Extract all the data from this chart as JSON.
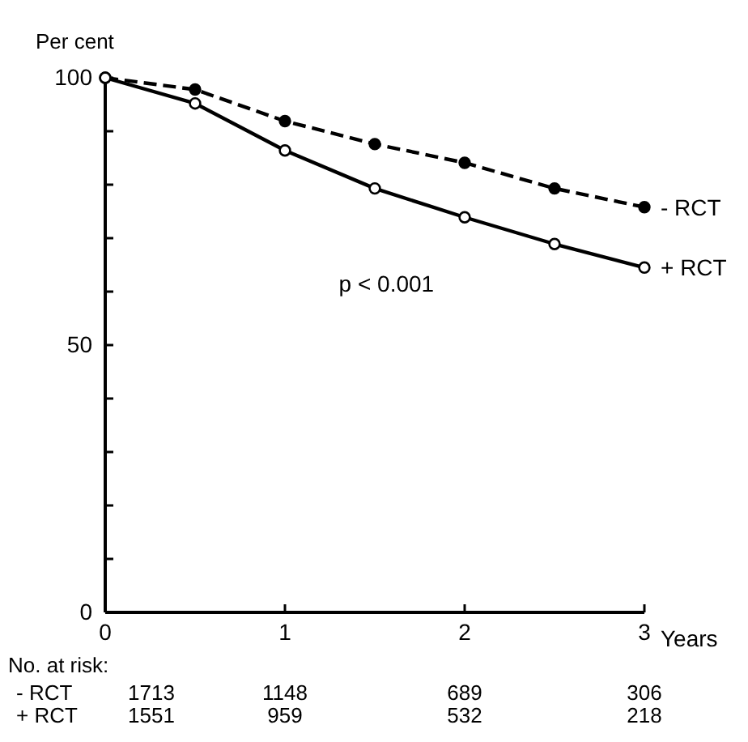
{
  "chart_data": {
    "type": "line",
    "ylabel": "Per cent",
    "xlabel": "Years",
    "x": [
      0,
      0.5,
      1,
      1.5,
      2,
      2.5,
      3
    ],
    "series": [
      {
        "name": "- RCT",
        "color": "#000000",
        "line_style": "dashed",
        "values": [
          100,
          97.8,
          91.9,
          87.6,
          84.1,
          79.3,
          75.8
        ]
      },
      {
        "name": "+ RCT",
        "color": "#000000",
        "line_style": "solid",
        "values": [
          100,
          95.2,
          86.4,
          79.3,
          73.9,
          68.9,
          64.5
        ]
      }
    ],
    "xlim": [
      0,
      3
    ],
    "xticks": [
      0,
      1,
      2,
      3
    ],
    "ylim": [
      0,
      100
    ],
    "yticks": [
      0,
      {
        "value": 10,
        "label": null
      },
      {
        "value": 20,
        "label": null
      },
      {
        "value": 30,
        "label": null
      },
      {
        "value": 40,
        "label": null
      },
      50,
      {
        "value": 60,
        "label": null
      },
      {
        "value": 70,
        "label": null
      },
      {
        "value": 80,
        "label": null
      },
      {
        "value": 90,
        "label": null
      },
      100
    ],
    "marker": "circle",
    "grid": false,
    "annotations": [
      "p < 0.001",
      "No. at risk:",
      "- RCT",
      "1713",
      "1148",
      "689",
      "306",
      "+ RCT",
      "1551",
      "959",
      "532",
      "218"
    ]
  }
}
